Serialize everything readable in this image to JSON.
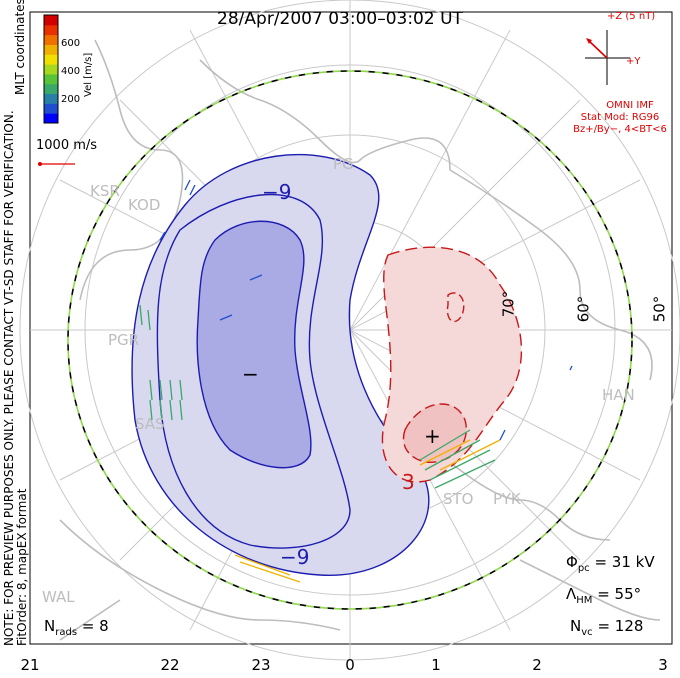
{
  "title": "28/Apr/2007 03:00–03:02 UT",
  "side_note": {
    "line1": "NOTE: FOR PREVIEW PURPOSES ONLY. PLEASE CONTACT VT-SD STAFF FOR VERIFICATION.",
    "line2": "FitOrder: 8, mapEX format"
  },
  "mlt_coordinates": "MLT coordinates",
  "colorbar": {
    "label": "Vel [m/s]",
    "ticks": [
      "600",
      "400",
      "200"
    ],
    "colors": [
      "#0000ff",
      "#1f4fd0",
      "#2a7fa8",
      "#3aa86a",
      "#59c43a",
      "#a8d820",
      "#f0e000",
      "#f0b000",
      "#f07000",
      "#e83000",
      "#d00000"
    ]
  },
  "vector_scale": {
    "label": "1000 m/s",
    "color": "#e00000"
  },
  "imf": {
    "z_label": "+Z (5 nT)",
    "y_label": "+Y",
    "source": "OMNI IMF",
    "model": "Stat Mod: RG96",
    "condition": "Bz+/By−, 4<BT<6"
  },
  "stations": [
    "KSR",
    "KOD",
    "PGR",
    "SAS",
    "HAN",
    "STO",
    "PYK",
    "WAL",
    "PG"
  ],
  "latitudes": [
    "70°",
    "60°",
    "50°"
  ],
  "contour_labels": [
    "−9",
    "−9",
    "3",
    "−",
    "+"
  ],
  "stats": {
    "phi_pc": {
      "symbol": "Φ",
      "sub": "pc",
      "value": "= 31 kV"
    },
    "lambda_hm": {
      "symbol": "Λ",
      "sub": "HM",
      "value": "= 55°"
    },
    "n_vc": {
      "symbol": "N",
      "sub": "vc",
      "value": "= 128"
    },
    "n_rads": {
      "symbol": "N",
      "sub": "rads",
      "value": "= 8"
    }
  },
  "x_ticks": [
    "21",
    "22",
    "23",
    "0",
    "1",
    "2",
    "3"
  ]
}
